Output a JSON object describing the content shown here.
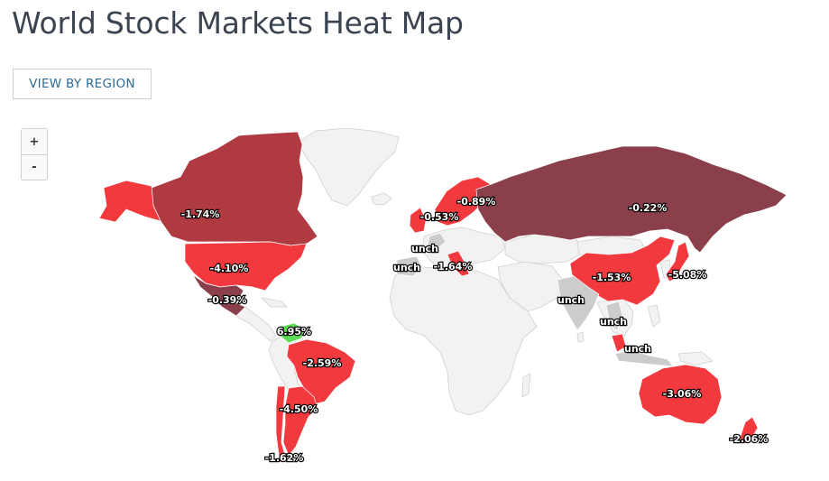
{
  "page": {
    "title": "World Stock Markets Heat Map"
  },
  "controls": {
    "view_button": "VIEW BY REGION",
    "zoom_in": "+",
    "zoom_out": "-"
  },
  "colors": {
    "land": "#f2f2f2",
    "border": "#d0d0d0",
    "unchanged": "#cccccc",
    "down_light": "#f23a3e",
    "down_mid": "#b03a42",
    "down_dark": "#8b3f4b",
    "up": "#5ddc55"
  },
  "markets": [
    {
      "name": "canada",
      "label": "-1.74%",
      "color": "down_mid"
    },
    {
      "name": "united-states",
      "label": "-4.10%",
      "color": "down_light"
    },
    {
      "name": "mexico",
      "label": "-0.39%",
      "color": "down_dark"
    },
    {
      "name": "venezuela",
      "label": "6.95%",
      "color": "up"
    },
    {
      "name": "brazil",
      "label": "-2.59%",
      "color": "down_light"
    },
    {
      "name": "argentina",
      "label": "-4.50%",
      "color": "down_light"
    },
    {
      "name": "chile",
      "label": "-1.62%",
      "color": "down_light"
    },
    {
      "name": "united-kingdom",
      "label": "-0.53%",
      "color": "down_light"
    },
    {
      "name": "nordics",
      "label": "-0.89%",
      "color": "down_light"
    },
    {
      "name": "netherlands",
      "label": "unch",
      "color": "unchanged"
    },
    {
      "name": "spain",
      "label": "unch",
      "color": "unchanged"
    },
    {
      "name": "italy",
      "label": "-1.64%",
      "color": "down_light"
    },
    {
      "name": "russia",
      "label": "-0.22%",
      "color": "down_dark"
    },
    {
      "name": "china",
      "label": "-1.53%",
      "color": "down_light"
    },
    {
      "name": "japan",
      "label": "-5.08%",
      "color": "down_light"
    },
    {
      "name": "india",
      "label": "unch",
      "color": "unchanged"
    },
    {
      "name": "thailand",
      "label": "unch",
      "color": "unchanged"
    },
    {
      "name": "indonesia",
      "label": "unch",
      "color": "unchanged"
    },
    {
      "name": "australia",
      "label": "-3.06%",
      "color": "down_light"
    },
    {
      "name": "new-zealand",
      "label": "-2.06%",
      "color": "down_light"
    }
  ]
}
